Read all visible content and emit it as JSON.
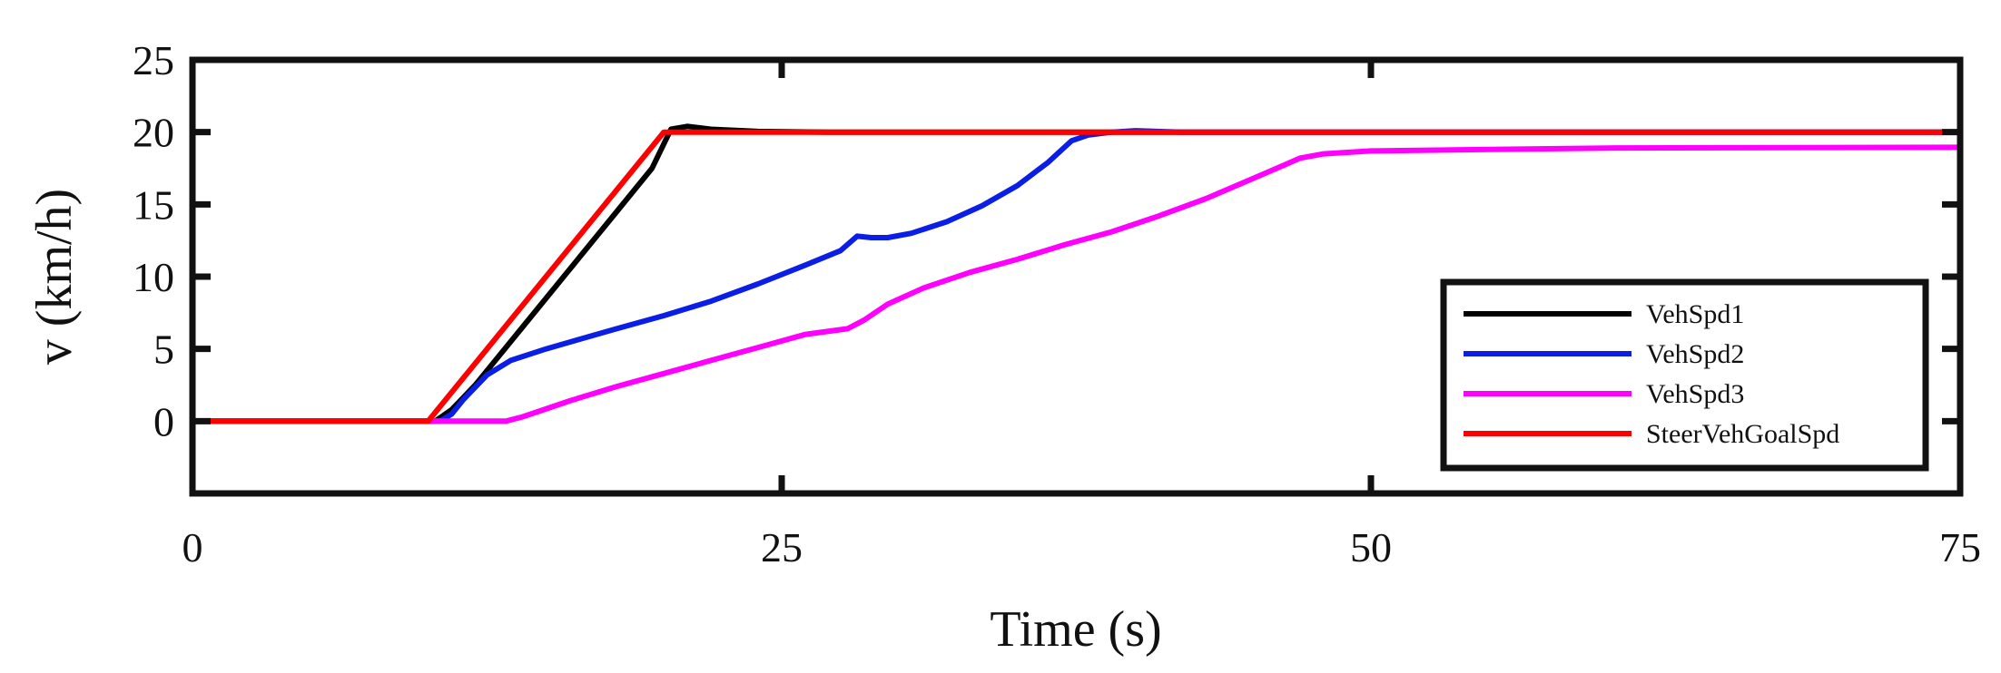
{
  "chart_data": {
    "type": "line",
    "xlabel": "Time (s)",
    "ylabel": "v (km/h)",
    "xlim": [
      0,
      75
    ],
    "ylim": [
      -5,
      25
    ],
    "xticks": [
      0,
      25,
      50,
      75
    ],
    "yticks": [
      0,
      5,
      10,
      15,
      20,
      25
    ],
    "grid": false,
    "legend_position": "bottom-right",
    "series": [
      {
        "name": "VehSpd1",
        "color": "#000000",
        "points": [
          [
            0,
            0
          ],
          [
            10.3,
            0
          ],
          [
            11,
            0.8
          ],
          [
            12,
            2.5
          ],
          [
            14,
            6.5
          ],
          [
            16,
            10.5
          ],
          [
            18,
            14.5
          ],
          [
            19.5,
            17.5
          ],
          [
            20.3,
            20.2
          ],
          [
            21,
            20.4
          ],
          [
            22,
            20.2
          ],
          [
            24,
            20.05
          ],
          [
            27,
            20
          ],
          [
            30,
            20
          ],
          [
            40,
            20
          ],
          [
            50,
            20
          ],
          [
            75,
            20
          ]
        ]
      },
      {
        "name": "VehSpd2",
        "color": "#0a1ee6",
        "points": [
          [
            0,
            0
          ],
          [
            10.5,
            0
          ],
          [
            11,
            0.5
          ],
          [
            11.5,
            1.5
          ],
          [
            12.5,
            3.2
          ],
          [
            13.5,
            4.2
          ],
          [
            15,
            5
          ],
          [
            16.5,
            5.7
          ],
          [
            18,
            6.4
          ],
          [
            20,
            7.3
          ],
          [
            22,
            8.3
          ],
          [
            24,
            9.5
          ],
          [
            26,
            10.8
          ],
          [
            27.5,
            11.8
          ],
          [
            28.2,
            12.8
          ],
          [
            28.8,
            12.7
          ],
          [
            29.5,
            12.7
          ],
          [
            30.5,
            13
          ],
          [
            32,
            13.8
          ],
          [
            33.5,
            14.9
          ],
          [
            35,
            16.3
          ],
          [
            36.3,
            17.9
          ],
          [
            37.3,
            19.4
          ],
          [
            38,
            19.8
          ],
          [
            39,
            20
          ],
          [
            40,
            20.1
          ],
          [
            42,
            20
          ],
          [
            45,
            20
          ],
          [
            75,
            20
          ]
        ]
      },
      {
        "name": "VehSpd3",
        "color": "#ff00ff",
        "points": [
          [
            0,
            0
          ],
          [
            13.3,
            0
          ],
          [
            14,
            0.3
          ],
          [
            16,
            1.4
          ],
          [
            18,
            2.4
          ],
          [
            20,
            3.3
          ],
          [
            22,
            4.2
          ],
          [
            24,
            5.1
          ],
          [
            26,
            6
          ],
          [
            27.8,
            6.4
          ],
          [
            28.5,
            7
          ],
          [
            29.5,
            8.1
          ],
          [
            31,
            9.2
          ],
          [
            33,
            10.3
          ],
          [
            35,
            11.2
          ],
          [
            37,
            12.2
          ],
          [
            39,
            13.1
          ],
          [
            41,
            14.2
          ],
          [
            43,
            15.4
          ],
          [
            45,
            16.8
          ],
          [
            46.3,
            17.7
          ],
          [
            47,
            18.2
          ],
          [
            48,
            18.5
          ],
          [
            49,
            18.6
          ],
          [
            50,
            18.7
          ],
          [
            55,
            18.8
          ],
          [
            60,
            18.9
          ],
          [
            75,
            18.95
          ]
        ]
      },
      {
        "name": "SteerVehGoalSpd",
        "color": "#ff0000",
        "points": [
          [
            0,
            0
          ],
          [
            10,
            0
          ],
          [
            20,
            20
          ],
          [
            75,
            20
          ]
        ]
      }
    ]
  }
}
